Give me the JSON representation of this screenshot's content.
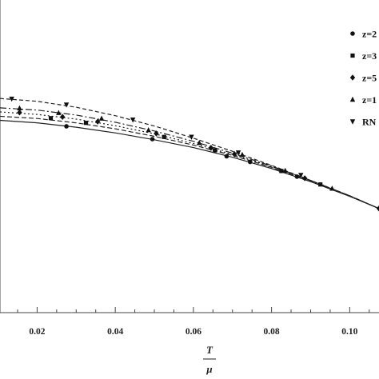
{
  "chart_data": {
    "type": "line",
    "title": "",
    "xlabel": {
      "numerator": "T",
      "denominator": "μ"
    },
    "ylabel": "",
    "xlim": [
      0.0105,
      0.1075
    ],
    "ylim": [
      0.0,
      1.0
    ],
    "x_ticks": [
      0.02,
      0.04,
      0.06,
      0.08,
      0.1
    ],
    "x_tick_labels": [
      "0.02",
      "0.04",
      "0.06",
      "0.08",
      "0.10"
    ],
    "grid": false,
    "legend_position": "top-right",
    "series": [
      {
        "name": "z=2",
        "marker": "circle",
        "dash": "solid",
        "color": "#222222",
        "line": [
          [
            0.0105,
            0.615
          ],
          [
            0.02,
            0.607
          ],
          [
            0.03,
            0.593
          ],
          [
            0.04,
            0.575
          ],
          [
            0.05,
            0.553
          ],
          [
            0.06,
            0.528
          ],
          [
            0.07,
            0.497
          ],
          [
            0.08,
            0.461
          ],
          [
            0.09,
            0.419
          ],
          [
            0.1,
            0.372
          ],
          [
            0.1075,
            0.333
          ]
        ],
        "points": [
          [
            0.0275,
            0.596
          ],
          [
            0.0495,
            0.555
          ],
          [
            0.0685,
            0.5
          ],
          [
            0.0745,
            0.482
          ],
          [
            0.0865,
            0.435
          ]
        ]
      },
      {
        "name": "z=3",
        "marker": "square",
        "dash": "6,3",
        "color": "#222222",
        "line": [
          [
            0.0105,
            0.628
          ],
          [
            0.02,
            0.621
          ],
          [
            0.03,
            0.607
          ],
          [
            0.04,
            0.588
          ],
          [
            0.05,
            0.564
          ],
          [
            0.06,
            0.536
          ],
          [
            0.07,
            0.503
          ],
          [
            0.08,
            0.465
          ],
          [
            0.09,
            0.421
          ],
          [
            0.1,
            0.373
          ],
          [
            0.1075,
            0.333
          ]
        ],
        "points": [
          [
            0.0235,
            0.622
          ],
          [
            0.0325,
            0.607
          ],
          [
            0.0525,
            0.562
          ],
          [
            0.0655,
            0.519
          ],
          [
            0.0825,
            0.453
          ],
          [
            0.0925,
            0.41
          ]
        ]
      },
      {
        "name": "z=5",
        "marker": "diamond",
        "dash": "2,3",
        "color": "#222222",
        "line": [
          [
            0.0105,
            0.642
          ],
          [
            0.02,
            0.634
          ],
          [
            0.03,
            0.619
          ],
          [
            0.04,
            0.598
          ],
          [
            0.05,
            0.572
          ],
          [
            0.06,
            0.541
          ],
          [
            0.07,
            0.506
          ],
          [
            0.08,
            0.467
          ],
          [
            0.09,
            0.422
          ],
          [
            0.1,
            0.373
          ],
          [
            0.1075,
            0.333
          ]
        ],
        "points": [
          [
            0.0155,
            0.64
          ],
          [
            0.0265,
            0.626
          ],
          [
            0.0355,
            0.611
          ],
          [
            0.0505,
            0.573
          ],
          [
            0.0645,
            0.527
          ],
          [
            0.0705,
            0.507
          ],
          [
            0.0885,
            0.43
          ],
          [
            0.1075,
            0.333
          ]
        ]
      },
      {
        "name": "z=1",
        "marker": "triangle-up",
        "dash": "8,3,2,3",
        "color": "#222222",
        "line": [
          [
            0.0105,
            0.655
          ],
          [
            0.02,
            0.648
          ],
          [
            0.03,
            0.632
          ],
          [
            0.04,
            0.609
          ],
          [
            0.05,
            0.581
          ],
          [
            0.06,
            0.548
          ],
          [
            0.07,
            0.51
          ],
          [
            0.08,
            0.469
          ],
          [
            0.09,
            0.423
          ],
          [
            0.1,
            0.374
          ],
          [
            0.1075,
            0.333
          ]
        ],
        "points": [
          [
            0.0155,
            0.654
          ],
          [
            0.0255,
            0.639
          ],
          [
            0.0365,
            0.621
          ],
          [
            0.0485,
            0.584
          ],
          [
            0.0615,
            0.543
          ],
          [
            0.0725,
            0.505
          ],
          [
            0.0835,
            0.454
          ],
          [
            0.0955,
            0.397
          ]
        ]
      },
      {
        "name": "RN",
        "marker": "triangle-down",
        "dash": "5,3",
        "color": "#222222",
        "line": [
          [
            0.0105,
            0.685
          ],
          [
            0.02,
            0.676
          ],
          [
            0.03,
            0.657
          ],
          [
            0.04,
            0.63
          ],
          [
            0.05,
            0.597
          ],
          [
            0.06,
            0.558
          ],
          [
            0.07,
            0.516
          ],
          [
            0.08,
            0.471
          ],
          [
            0.09,
            0.423
          ],
          [
            0.1,
            0.374
          ],
          [
            0.1075,
            0.333
          ]
        ],
        "points": [
          [
            0.0135,
            0.684
          ],
          [
            0.0275,
            0.665
          ],
          [
            0.0445,
            0.617
          ],
          [
            0.0595,
            0.562
          ],
          [
            0.0715,
            0.512
          ],
          [
            0.0875,
            0.44
          ]
        ]
      }
    ]
  }
}
